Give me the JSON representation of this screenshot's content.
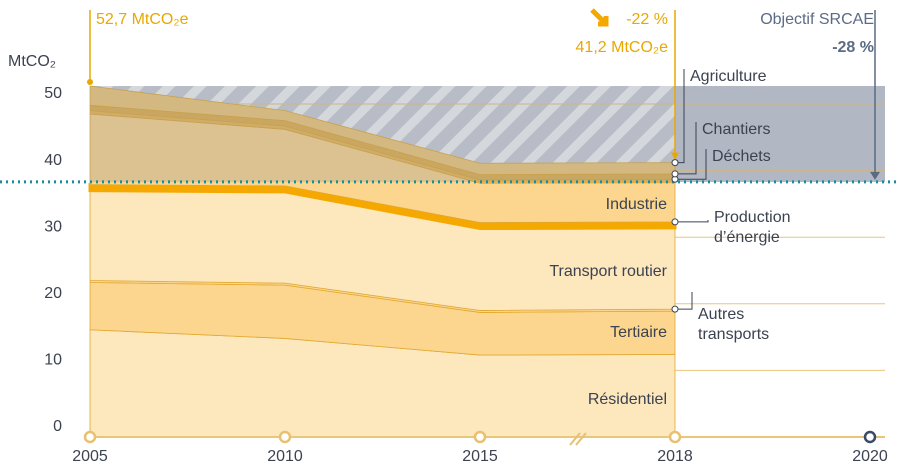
{
  "chart_data": {
    "type": "stacked_area",
    "y_label": "MtCO₂",
    "categories": [
      "2005",
      "2010",
      "2015",
      "2018",
      "2020"
    ],
    "series": [
      {
        "name": "Résidentiel",
        "color": "#fde7bd",
        "values": [
          16.1,
          14.8,
          12.3,
          12.4,
          null
        ]
      },
      {
        "name": "Tertiaire",
        "color": "#fcd68e",
        "values": [
          7.1,
          8.0,
          6.4,
          6.5,
          null
        ]
      },
      {
        "name": "Autres transports",
        "color": "#fcd68e",
        "values": [
          0.3,
          0.3,
          0.3,
          0.3,
          null
        ]
      },
      {
        "name": "Transport routier",
        "color": "#fde7bd",
        "values": [
          13.5,
          13.7,
          12.3,
          12.2,
          null
        ]
      },
      {
        "name": "Production d’énergie",
        "color": "#f5a800",
        "values": [
          0.9,
          0.9,
          0.9,
          0.9,
          null
        ]
      },
      {
        "name": "Industrie",
        "color": "#fcd68e",
        "values": [
          10.6,
          8.5,
          5.9,
          5.9,
          null
        ]
      },
      {
        "name": "Déchets",
        "color": "#eab956",
        "values": [
          0.5,
          0.5,
          0.5,
          0.5,
          null
        ]
      },
      {
        "name": "Chantiers",
        "color": "#e3b04c",
        "values": [
          0.8,
          0.8,
          0.8,
          0.8,
          null
        ]
      },
      {
        "name": "Agriculture",
        "color": "#f0c878",
        "values": [
          2.9,
          1.5,
          1.7,
          1.7,
          null
        ]
      }
    ],
    "target_value": 38.3,
    "ylim": [
      0,
      55
    ],
    "yticks": [
      0,
      10,
      20,
      30,
      40,
      50
    ],
    "grid": true,
    "annotations": {
      "start": "52,7 MtCO₂e",
      "change": "-22 %",
      "end": "41,2 MtCO₂e",
      "objective": "Objectif SRCAE",
      "objective_change": "-28 %"
    }
  }
}
